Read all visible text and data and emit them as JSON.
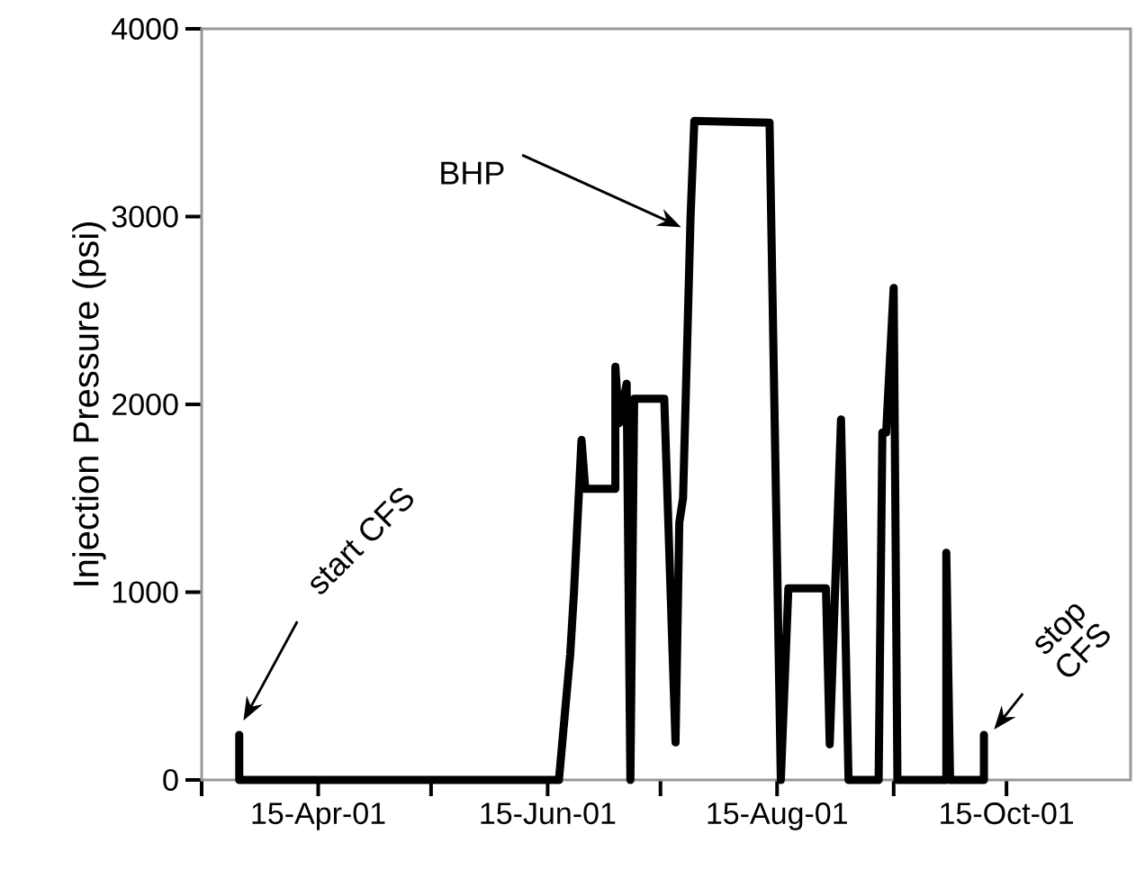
{
  "chart_data": {
    "type": "line",
    "ylabel": "Injection Pressure (psi)",
    "x": [
      "2001-03-25",
      "2001-03-25",
      "2001-06-18",
      "2001-06-21",
      "2001-06-22",
      "2001-06-24",
      "2001-06-25",
      "2001-07-03",
      "2001-07-03",
      "2001-07-04",
      "2001-07-06",
      "2001-07-07",
      "2001-07-08",
      "2001-07-16",
      "2001-07-19",
      "2001-07-20",
      "2001-07-21",
      "2001-07-23",
      "2001-07-24",
      "2001-08-13",
      "2001-08-16",
      "2001-08-18",
      "2001-08-28",
      "2001-08-29",
      "2001-09-01",
      "2001-09-03",
      "2001-09-11",
      "2001-09-12",
      "2001-09-13",
      "2001-09-15",
      "2001-09-16",
      "2001-09-29",
      "2001-09-29",
      "2001-09-30",
      "2001-10-09",
      "2001-10-09"
    ],
    "series": [
      {
        "color": "#000000",
        "values": [
          240,
          0,
          0,
          670,
          1000,
          1810,
          1550,
          1550,
          2200,
          1900,
          2110,
          0,
          2030,
          2030,
          200,
          1370,
          1500,
          3000,
          3510,
          3500,
          0,
          1020,
          1020,
          190,
          1920,
          0,
          0,
          1850,
          1850,
          2620,
          0,
          0,
          1210,
          0,
          0,
          240
        ]
      }
    ],
    "xlim": [
      "2001-03-15",
      "2001-11-17"
    ],
    "xticks": [
      {
        "value": "2001-03-15",
        "label": null
      },
      {
        "value": "2001-04-15",
        "label": "15-Apr-01"
      },
      {
        "value": "2001-05-15",
        "label": null
      },
      {
        "value": "2001-06-15",
        "label": "15-Jun-01"
      },
      {
        "value": "2001-07-15",
        "label": null
      },
      {
        "value": "2001-08-15",
        "label": "15-Aug-01"
      },
      {
        "value": "2001-09-15",
        "label": null
      },
      {
        "value": "2001-10-15",
        "label": "15-Oct-01"
      }
    ],
    "ylim": [
      0,
      4000
    ],
    "yticks": [
      0,
      1000,
      2000,
      3000,
      4000
    ],
    "grid": false,
    "marker": "none",
    "line_style": "solid",
    "annotations": [
      "BHP",
      "start CFS",
      "stop CFS"
    ]
  }
}
